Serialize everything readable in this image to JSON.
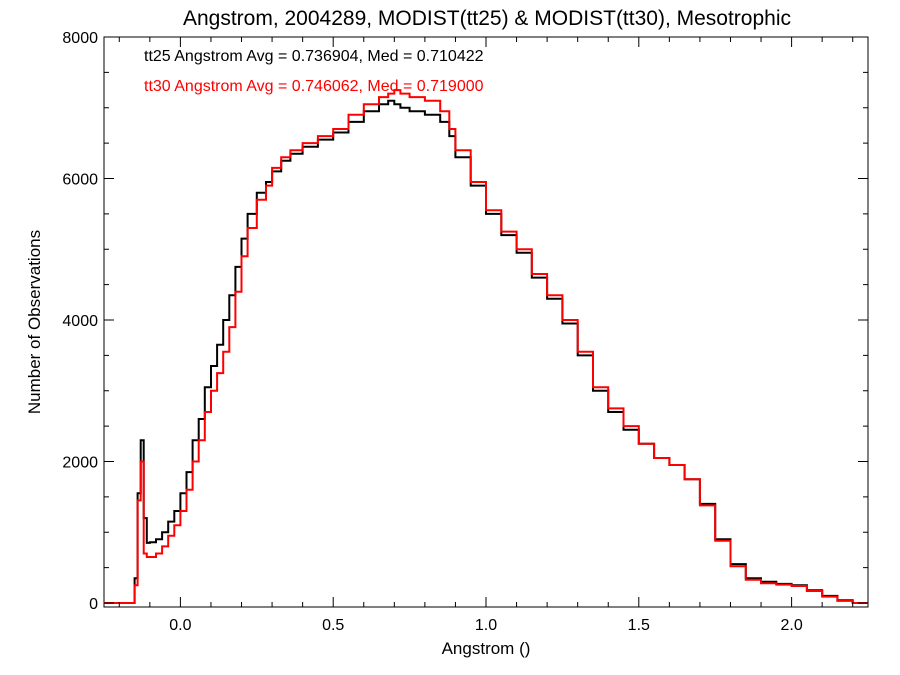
{
  "chart_data": {
    "type": "line",
    "title": "Angstrom, 2004289, MODIST(tt25) & MODIST(tt30), Mesotrophic",
    "xlabel": "Angstrom ()",
    "ylabel": "Number of Observations",
    "xlim": [
      -0.25,
      2.25
    ],
    "ylim": [
      0,
      8000
    ],
    "xticks": [
      0.0,
      0.5,
      1.0,
      1.5,
      2.0
    ],
    "xtick_labels": [
      "0.0",
      "0.5",
      "1.0",
      "1.5",
      "2.0"
    ],
    "yticks": [
      0,
      2000,
      4000,
      6000,
      8000
    ],
    "ytick_labels": [
      "0",
      "2000",
      "4000",
      "6000",
      "8000"
    ],
    "annotations": [
      {
        "text": "tt25 Angstrom Avg = 0.736904, Med = 0.710422",
        "color": "#000000"
      },
      {
        "text": "tt30 Angstrom Avg = 0.746062, Med = 0.719000",
        "color": "#ff0000"
      }
    ],
    "series": [
      {
        "color": "#000000",
        "x": [
          -0.25,
          -0.16,
          -0.15,
          -0.14,
          -0.13,
          -0.12,
          -0.11,
          -0.1,
          -0.08,
          -0.06,
          -0.04,
          -0.02,
          0.0,
          0.02,
          0.04,
          0.06,
          0.08,
          0.1,
          0.12,
          0.14,
          0.16,
          0.18,
          0.2,
          0.22,
          0.25,
          0.28,
          0.3,
          0.33,
          0.36,
          0.4,
          0.45,
          0.5,
          0.55,
          0.6,
          0.65,
          0.68,
          0.7,
          0.72,
          0.75,
          0.8,
          0.85,
          0.88,
          0.9,
          0.95,
          1.0,
          1.05,
          1.1,
          1.15,
          1.2,
          1.25,
          1.3,
          1.35,
          1.4,
          1.45,
          1.5,
          1.55,
          1.6,
          1.65,
          1.7,
          1.75,
          1.8,
          1.85,
          1.9,
          1.95,
          2.0,
          2.05,
          2.1,
          2.15,
          2.2,
          2.25
        ],
        "y": [
          0,
          0,
          350,
          1550,
          2300,
          1200,
          850,
          860,
          900,
          1000,
          1150,
          1300,
          1550,
          1850,
          2300,
          2600,
          3050,
          3350,
          3650,
          4000,
          4350,
          4750,
          5150,
          5500,
          5800,
          5950,
          6100,
          6250,
          6350,
          6450,
          6550,
          6650,
          6800,
          6950,
          7050,
          7100,
          7050,
          7000,
          6950,
          6900,
          6800,
          6600,
          6300,
          5900,
          5500,
          5200,
          4950,
          4600,
          4300,
          3950,
          3500,
          3000,
          2700,
          2450,
          2250,
          2050,
          1950,
          1750,
          1400,
          900,
          550,
          350,
          300,
          270,
          250,
          180,
          100,
          40,
          0,
          0
        ]
      },
      {
        "color": "#ff0000",
        "x": [
          -0.25,
          -0.16,
          -0.15,
          -0.14,
          -0.13,
          -0.12,
          -0.11,
          -0.1,
          -0.08,
          -0.06,
          -0.04,
          -0.02,
          0.0,
          0.02,
          0.04,
          0.06,
          0.08,
          0.1,
          0.12,
          0.14,
          0.16,
          0.18,
          0.2,
          0.22,
          0.25,
          0.28,
          0.3,
          0.33,
          0.36,
          0.4,
          0.45,
          0.5,
          0.55,
          0.6,
          0.65,
          0.68,
          0.7,
          0.72,
          0.75,
          0.8,
          0.85,
          0.88,
          0.9,
          0.95,
          1.0,
          1.05,
          1.1,
          1.15,
          1.2,
          1.25,
          1.3,
          1.35,
          1.4,
          1.45,
          1.5,
          1.55,
          1.6,
          1.65,
          1.7,
          1.75,
          1.8,
          1.85,
          1.9,
          1.95,
          2.0,
          2.05,
          2.1,
          2.15,
          2.2,
          2.25
        ],
        "y": [
          0,
          0,
          250,
          1450,
          2000,
          700,
          650,
          650,
          700,
          800,
          950,
          1100,
          1300,
          1600,
          2000,
          2300,
          2700,
          3000,
          3250,
          3550,
          3900,
          4400,
          4900,
          5300,
          5700,
          5900,
          6150,
          6300,
          6400,
          6500,
          6600,
          6700,
          6900,
          7050,
          7150,
          7200,
          7250,
          7200,
          7150,
          7100,
          6950,
          6700,
          6400,
          5950,
          5550,
          5250,
          5000,
          4650,
          4350,
          4000,
          3550,
          3050,
          2750,
          2500,
          2250,
          2050,
          1950,
          1750,
          1380,
          880,
          520,
          330,
          280,
          260,
          240,
          170,
          90,
          30,
          0,
          0
        ]
      }
    ]
  }
}
